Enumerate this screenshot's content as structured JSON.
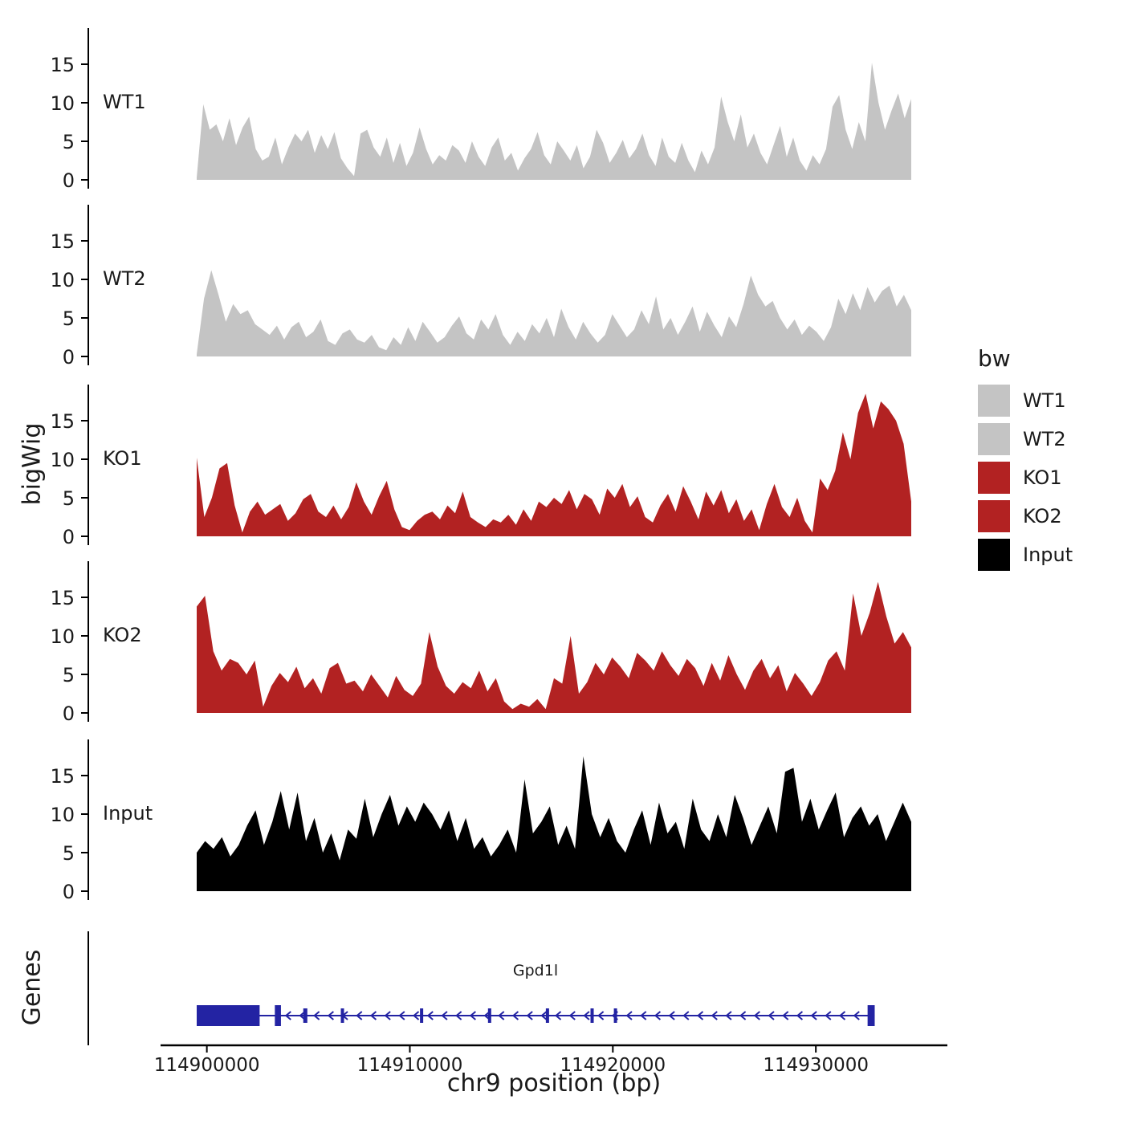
{
  "labels": {
    "ylabel": "bigWig",
    "genes_panel": "Genes"
  },
  "legend": {
    "title": "bw",
    "items": [
      {
        "label": "WT1",
        "color": "#c4c4c4"
      },
      {
        "label": "WT2",
        "color": "#c4c4c4"
      },
      {
        "label": "KO1",
        "color": "#b22222"
      },
      {
        "label": "KO2",
        "color": "#b22222"
      },
      {
        "label": "Input",
        "color": "#000000"
      }
    ]
  },
  "chart_data": {
    "type": "area",
    "title": "",
    "xlabel": "chr9 position (bp)",
    "ylabel": "bigWig",
    "genes_label": "Genes",
    "x_start": 114899500,
    "x_end": 114934700,
    "x_ticks": [
      114900000,
      114910000,
      114920000,
      114930000
    ],
    "y_ticks": [
      0,
      5,
      10,
      15
    ],
    "ylim": [
      0,
      19
    ],
    "tracks": [
      {
        "name": "WT1",
        "color": "#c4c4c4",
        "values": [
          0.3,
          9.8,
          6.5,
          7.2,
          5.0,
          8.0,
          4.5,
          6.8,
          8.2,
          4.0,
          2.5,
          3.0,
          5.5,
          2.0,
          4.2,
          6.0,
          5.0,
          6.5,
          3.5,
          5.8,
          4.0,
          6.2,
          2.8,
          1.5,
          0.5,
          6.0,
          6.5,
          4.2,
          3.0,
          5.5,
          2.2,
          4.8,
          1.8,
          3.5,
          6.8,
          4.0,
          2.0,
          3.2,
          2.5,
          4.5,
          3.8,
          2.2,
          5.0,
          3.0,
          1.8,
          4.2,
          5.5,
          2.5,
          3.5,
          1.2,
          2.8,
          4.0,
          6.2,
          3.2,
          2.0,
          5.0,
          3.8,
          2.5,
          4.5,
          1.5,
          3.0,
          6.5,
          4.8,
          2.2,
          3.5,
          5.2,
          2.8,
          4.0,
          6.0,
          3.2,
          1.8,
          5.5,
          3.0,
          2.2,
          4.8,
          2.5,
          1.0,
          3.8,
          2.0,
          4.2,
          10.8,
          7.5,
          5.0,
          8.5,
          4.2,
          6.0,
          3.5,
          2.0,
          4.5,
          7.0,
          3.0,
          5.5,
          2.5,
          1.2,
          3.2,
          2.0,
          4.0,
          9.5,
          11.0,
          6.5,
          4.0,
          7.5,
          5.0,
          15.2,
          10.0,
          6.5,
          9.0,
          11.2,
          8.0,
          10.5
        ]
      },
      {
        "name": "WT2",
        "color": "#c4c4c4",
        "values": [
          0.3,
          7.5,
          11.2,
          8.0,
          4.5,
          6.8,
          5.5,
          6.0,
          4.2,
          3.5,
          2.8,
          4.0,
          2.2,
          3.8,
          4.5,
          2.5,
          3.2,
          4.8,
          2.0,
          1.5,
          3.0,
          3.5,
          2.2,
          1.8,
          2.8,
          1.2,
          0.8,
          2.5,
          1.5,
          3.8,
          2.0,
          4.5,
          3.2,
          1.8,
          2.5,
          4.0,
          5.2,
          3.0,
          2.2,
          4.8,
          3.5,
          5.5,
          2.8,
          1.5,
          3.2,
          2.0,
          4.2,
          3.0,
          5.0,
          2.5,
          6.2,
          3.8,
          2.2,
          4.5,
          3.0,
          1.8,
          2.8,
          5.5,
          4.0,
          2.5,
          3.5,
          6.0,
          4.2,
          7.8,
          3.5,
          5.0,
          2.8,
          4.5,
          6.5,
          3.2,
          5.8,
          4.0,
          2.5,
          5.2,
          3.8,
          6.8,
          10.5,
          8.0,
          6.5,
          7.2,
          5.0,
          3.5,
          4.8,
          2.8,
          4.0,
          3.2,
          2.0,
          3.8,
          7.5,
          5.5,
          8.2,
          6.0,
          9.0,
          7.0,
          8.5,
          9.2,
          6.5,
          8.0,
          6.0
        ]
      },
      {
        "name": "KO1",
        "color": "#b22222",
        "values": [
          10.2,
          2.5,
          5.0,
          8.8,
          9.5,
          4.0,
          0.5,
          3.2,
          4.5,
          2.8,
          3.5,
          4.2,
          2.0,
          3.0,
          4.8,
          5.5,
          3.2,
          2.5,
          4.0,
          2.2,
          3.8,
          7.0,
          4.5,
          2.8,
          5.2,
          7.2,
          3.5,
          1.2,
          0.8,
          2.0,
          2.8,
          3.2,
          2.2,
          4.0,
          3.0,
          5.8,
          2.5,
          1.8,
          1.2,
          2.2,
          1.8,
          2.8,
          1.5,
          3.5,
          2.0,
          4.5,
          3.8,
          5.0,
          4.2,
          6.0,
          3.5,
          5.5,
          4.8,
          2.8,
          6.2,
          5.0,
          6.8,
          3.8,
          5.2,
          2.5,
          1.8,
          4.0,
          5.5,
          3.2,
          6.5,
          4.5,
          2.2,
          5.8,
          4.0,
          6.0,
          3.0,
          4.8,
          2.0,
          3.5,
          0.8,
          4.2,
          6.8,
          3.8,
          2.5,
          5.0,
          2.0,
          0.5,
          7.5,
          6.0,
          8.5,
          13.5,
          10.0,
          16.0,
          18.5,
          14.0,
          17.5,
          16.5,
          15.0,
          12.0,
          4.5
        ]
      },
      {
        "name": "KO2",
        "color": "#b22222",
        "values": [
          13.8,
          15.2,
          8.0,
          5.5,
          7.0,
          6.5,
          5.0,
          6.8,
          0.8,
          3.5,
          5.2,
          4.0,
          6.0,
          3.2,
          4.5,
          2.5,
          5.8,
          6.5,
          3.8,
          4.2,
          2.8,
          5.0,
          3.5,
          2.0,
          4.8,
          3.0,
          2.2,
          3.8,
          10.5,
          6.0,
          3.5,
          2.5,
          4.0,
          3.2,
          5.5,
          2.8,
          4.5,
          1.5,
          0.5,
          1.2,
          0.8,
          1.8,
          0.5,
          4.5,
          3.8,
          10.0,
          2.5,
          4.0,
          6.5,
          5.0,
          7.2,
          6.0,
          4.5,
          7.8,
          6.8,
          5.5,
          8.0,
          6.2,
          4.8,
          7.0,
          5.8,
          3.5,
          6.5,
          4.2,
          7.5,
          5.0,
          3.0,
          5.5,
          7.0,
          4.5,
          6.2,
          2.8,
          5.2,
          3.8,
          2.2,
          4.0,
          6.8,
          8.0,
          5.5,
          15.5,
          10.0,
          13.0,
          17.0,
          12.5,
          9.0,
          10.5,
          8.5
        ]
      },
      {
        "name": "Input",
        "color": "#000000",
        "values": [
          5.0,
          6.5,
          5.5,
          7.0,
          4.5,
          6.0,
          8.5,
          10.5,
          6.0,
          9.0,
          13.0,
          8.0,
          12.8,
          6.5,
          9.5,
          5.0,
          7.5,
          4.0,
          8.0,
          6.8,
          12.0,
          7.0,
          10.0,
          12.5,
          8.5,
          11.0,
          9.0,
          11.5,
          10.0,
          8.0,
          10.5,
          6.5,
          9.5,
          5.5,
          7.0,
          4.5,
          6.0,
          8.0,
          5.0,
          14.5,
          7.5,
          9.0,
          11.0,
          6.0,
          8.5,
          5.5,
          17.5,
          10.0,
          7.0,
          9.5,
          6.5,
          5.0,
          8.0,
          10.5,
          6.0,
          11.5,
          7.5,
          9.0,
          5.5,
          12.0,
          8.0,
          6.5,
          10.0,
          7.0,
          12.5,
          9.5,
          6.0,
          8.5,
          11.0,
          7.5,
          15.5,
          16.0,
          9.0,
          12.0,
          8.0,
          10.5,
          12.8,
          7.0,
          9.5,
          11.0,
          8.5,
          10.0,
          6.5,
          9.0,
          11.5,
          9.0
        ]
      }
    ],
    "gene": {
      "name": "Gpd1l",
      "strand": "-",
      "color": "#2323a3",
      "start": 114899500,
      "end": 114932900,
      "exons": [
        {
          "start": 114899500,
          "end": 114902600,
          "tall": true
        },
        {
          "start": 114903350,
          "end": 114903650,
          "tall": true
        },
        {
          "start": 114904750,
          "end": 114904950,
          "tall": false
        },
        {
          "start": 114906600,
          "end": 114906750,
          "tall": false
        },
        {
          "start": 114910500,
          "end": 114910650,
          "tall": false
        },
        {
          "start": 114913850,
          "end": 114913980,
          "tall": false
        },
        {
          "start": 114916700,
          "end": 114916830,
          "tall": false
        },
        {
          "start": 114918900,
          "end": 114919050,
          "tall": false
        },
        {
          "start": 114920050,
          "end": 114920200,
          "tall": false
        },
        {
          "start": 114932550,
          "end": 114932900,
          "tall": true
        }
      ]
    }
  }
}
